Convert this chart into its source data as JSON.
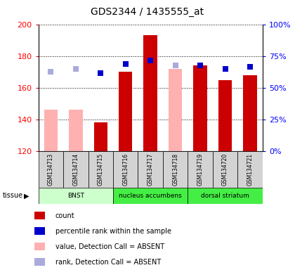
{
  "title": "GDS2344 / 1435555_at",
  "samples": [
    "GSM134713",
    "GSM134714",
    "GSM134715",
    "GSM134716",
    "GSM134717",
    "GSM134718",
    "GSM134719",
    "GSM134720",
    "GSM134721"
  ],
  "bar_values": [
    146,
    146,
    138,
    170,
    193,
    172,
    174,
    165,
    168
  ],
  "bar_colors": [
    "#ffb0b0",
    "#ffb0b0",
    "#cc0000",
    "#cc0000",
    "#cc0000",
    "#ffb0b0",
    "#cc0000",
    "#cc0000",
    "#cc0000"
  ],
  "rank_values_left_scale": [
    170,
    172,
    169,
    175,
    177,
    174,
    174,
    172,
    173
  ],
  "rank_colors": [
    "#aaaadd",
    "#aaaadd",
    "#0000cc",
    "#0000cc",
    "#0000cc",
    "#aaaadd",
    "#0000cc",
    "#0000cc",
    "#0000cc"
  ],
  "ylim_left": [
    120,
    200
  ],
  "ylim_right": [
    0,
    100
  ],
  "yticks_left": [
    120,
    140,
    160,
    180,
    200
  ],
  "yticks_right": [
    0,
    25,
    50,
    75,
    100
  ],
  "tissue_groups": [
    {
      "label": "BNST",
      "start": 0,
      "end": 3,
      "color": "#ccffcc"
    },
    {
      "label": "nucleus accumbens",
      "start": 3,
      "end": 6,
      "color": "#44ee44"
    },
    {
      "label": "dorsal striatum",
      "start": 6,
      "end": 9,
      "color": "#44ee44"
    }
  ],
  "legend_items": [
    {
      "color": "#cc0000",
      "label": "count"
    },
    {
      "color": "#0000cc",
      "label": "percentile rank within the sample"
    },
    {
      "color": "#ffb0b0",
      "label": "value, Detection Call = ABSENT"
    },
    {
      "color": "#aaaadd",
      "label": "rank, Detection Call = ABSENT"
    }
  ],
  "bar_width": 0.55,
  "rank_marker_size": 28
}
